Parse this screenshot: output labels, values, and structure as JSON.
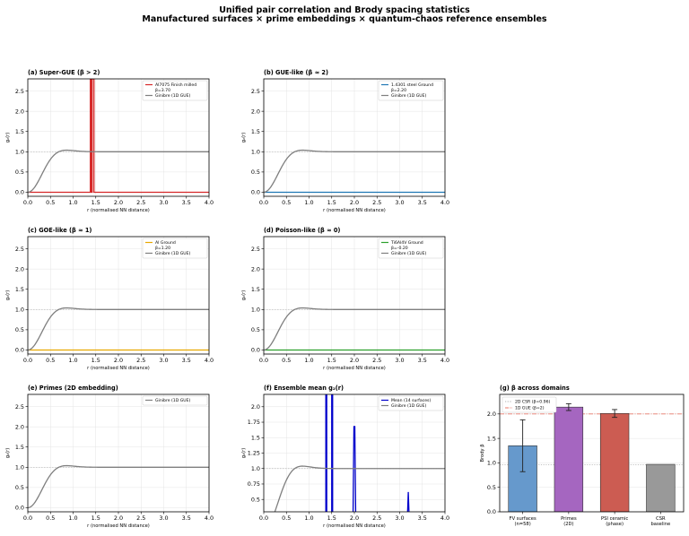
{
  "figure": {
    "title_line1": "Unified pair correlation and Brody spacing statistics",
    "title_line2": "Manufactured surfaces × prime embeddings × quantum-chaos reference ensembles"
  },
  "chart_data": [
    {
      "id": "a",
      "type": "line",
      "title": "(a) Super-GUE (β > 2)",
      "xlabel": "r (normalised NN distance)",
      "ylabel": "g₂(r)",
      "xlim": [
        0,
        4
      ],
      "ylim": [
        -0.1,
        2.8
      ],
      "xticks": [
        0,
        0.5,
        1,
        1.5,
        2,
        2.5,
        3,
        3.5,
        4
      ],
      "yticks": [
        0,
        0.5,
        1,
        1.5,
        2,
        2.5
      ],
      "grid": true,
      "legend_position": "top-right",
      "series": [
        {
          "name": "Al7075 Finish milled",
          "name_line2": "β=3.70",
          "color": "#d62728",
          "x": [
            0,
            1.38,
            1.38,
            1.4,
            1.4,
            1.42,
            1.42,
            1.46,
            1.46,
            1.48,
            1.48,
            4
          ],
          "y": [
            0,
            0,
            2.8,
            2.8,
            0,
            0,
            2.8,
            2.8,
            0,
            0,
            0,
            0
          ]
        },
        {
          "name": "Ginibre (1D GUE)",
          "color": "#7f7f7f",
          "curve": "ginibre"
        }
      ],
      "reference_line": 1.0
    },
    {
      "id": "b",
      "type": "line",
      "title": "(b) GUE-like (β ≈ 2)",
      "xlabel": "r (normalised NN distance)",
      "ylabel": "g₂(r)",
      "xlim": [
        0,
        4
      ],
      "ylim": [
        -0.1,
        2.8
      ],
      "xticks": [
        0,
        0.5,
        1,
        1.5,
        2,
        2.5,
        3,
        3.5,
        4
      ],
      "yticks": [
        0,
        0.5,
        1,
        1.5,
        2,
        2.5
      ],
      "grid": true,
      "legend_position": "top-right",
      "series": [
        {
          "name": "1.4301 steel Ground",
          "name_line2": "β=2.20",
          "color": "#1f77b4",
          "x": [
            0,
            4
          ],
          "y": [
            0,
            0
          ]
        },
        {
          "name": "Ginibre (1D GUE)",
          "color": "#7f7f7f",
          "curve": "ginibre"
        }
      ],
      "reference_line": 1.0
    },
    {
      "id": "c",
      "type": "line",
      "title": "(c) GOE-like (β ≈ 1)",
      "xlabel": "r (normalised NN distance)",
      "ylabel": "g₂(r)",
      "xlim": [
        0,
        4
      ],
      "ylim": [
        -0.1,
        2.8
      ],
      "xticks": [
        0,
        0.5,
        1,
        1.5,
        2,
        2.5,
        3,
        3.5,
        4
      ],
      "yticks": [
        0,
        0.5,
        1,
        1.5,
        2,
        2.5
      ],
      "grid": true,
      "legend_position": "top-right",
      "series": [
        {
          "name": "Al Ground",
          "name_line2": "β=1.20",
          "color": "#e8a800",
          "x": [
            0,
            4
          ],
          "y": [
            0,
            0
          ]
        },
        {
          "name": "Ginibre (1D GUE)",
          "color": "#7f7f7f",
          "curve": "ginibre"
        }
      ],
      "reference_line": 1.0
    },
    {
      "id": "d",
      "type": "line",
      "title": "(d) Poisson-like (β ≈ 0)",
      "xlabel": "r (normalised NN distance)",
      "ylabel": "g₂(r)",
      "xlim": [
        0,
        4
      ],
      "ylim": [
        -0.1,
        2.8
      ],
      "xticks": [
        0,
        0.5,
        1,
        1.5,
        2,
        2.5,
        3,
        3.5,
        4
      ],
      "yticks": [
        0,
        0.5,
        1,
        1.5,
        2,
        2.5
      ],
      "grid": true,
      "legend_position": "top-right",
      "series": [
        {
          "name": "Ti6Al4V Ground",
          "name_line2": "β=-0.20",
          "color": "#2ca02c",
          "x": [
            0,
            4
          ],
          "y": [
            0,
            0
          ]
        },
        {
          "name": "Ginibre (1D GUE)",
          "color": "#7f7f7f",
          "curve": "ginibre"
        }
      ],
      "reference_line": 1.0
    },
    {
      "id": "e",
      "type": "line",
      "title": "(e) Primes (2D embedding)",
      "xlabel": "r (normalised NN distance)",
      "ylabel": "g₂(r)",
      "xlim": [
        0,
        4
      ],
      "ylim": [
        -0.1,
        2.8
      ],
      "xticks": [
        0,
        0.5,
        1,
        1.5,
        2,
        2.5,
        3,
        3.5,
        4
      ],
      "yticks": [
        0,
        0.5,
        1,
        1.5,
        2,
        2.5
      ],
      "grid": true,
      "legend_position": "top-right",
      "series": [
        {
          "name": "Ginibre (1D GUE)",
          "color": "#7f7f7f",
          "curve": "ginibre"
        }
      ],
      "reference_line": 1.0
    },
    {
      "id": "f",
      "type": "line",
      "title": "(f) Ensemble mean g₂(r)",
      "xlabel": "r (normalised NN distance)",
      "ylabel": "g₂(r)",
      "xlim": [
        0,
        4
      ],
      "ylim": [
        0.3,
        2.2
      ],
      "xticks": [
        0,
        0.5,
        1,
        1.5,
        2,
        2.5,
        3,
        3.5,
        4
      ],
      "yticks": [
        0.5,
        0.75,
        1,
        1.25,
        1.5,
        1.75,
        2
      ],
      "grid": true,
      "legend_position": "top-right",
      "series": [
        {
          "name": "Mean (14 surfaces)",
          "color": "#0000cc",
          "x": [
            1.37,
            1.37,
            1.39,
            1.39,
            1.5,
            1.5,
            1.52,
            1.52,
            1.97,
            1.99,
            2.01,
            2.03,
            3.17,
            3.19,
            3.21
          ],
          "y": [
            0.2,
            2.2,
            2.2,
            0.2,
            0.2,
            2.2,
            2.2,
            0.2,
            0.2,
            1.68,
            1.68,
            0.2,
            0.2,
            0.62,
            0.2
          ],
          "segments": [
            [
              0,
              4
            ],
            [
              4,
              8
            ],
            [
              8,
              12
            ],
            [
              12,
              15
            ]
          ]
        },
        {
          "name": "Ginibre (1D GUE)",
          "color": "#7f7f7f",
          "curve": "ginibre"
        }
      ],
      "reference_line": 1.0
    },
    {
      "id": "g",
      "type": "bar",
      "title": "(g) β across domains",
      "ylabel": "Brody β",
      "ylim": [
        0,
        2.4
      ],
      "yticks": [
        0,
        0.5,
        1,
        1.5,
        2
      ],
      "categories": [
        "FV surfaces|(n=58)",
        "Primes|(2D)",
        "PSI ceramic|(phase)",
        "CSR|baseline"
      ],
      "values": [
        1.35,
        2.14,
        2.01,
        0.97
      ],
      "errors": [
        0.53,
        0.07,
        0.08,
        0
      ],
      "colors": [
        "#6699cc",
        "#a566c0",
        "#cc5c52",
        "#999999"
      ],
      "hlines": [
        {
          "label": "2D CSR (β=0.96)",
          "value": 0.96,
          "color": "#b0b0b0",
          "style": "dotted"
        },
        {
          "label": "1D GUE (β=2)",
          "value": 2.0,
          "color": "#e8786a",
          "style": "dashdot"
        }
      ],
      "grid": true,
      "legend_position": "top-left"
    }
  ]
}
